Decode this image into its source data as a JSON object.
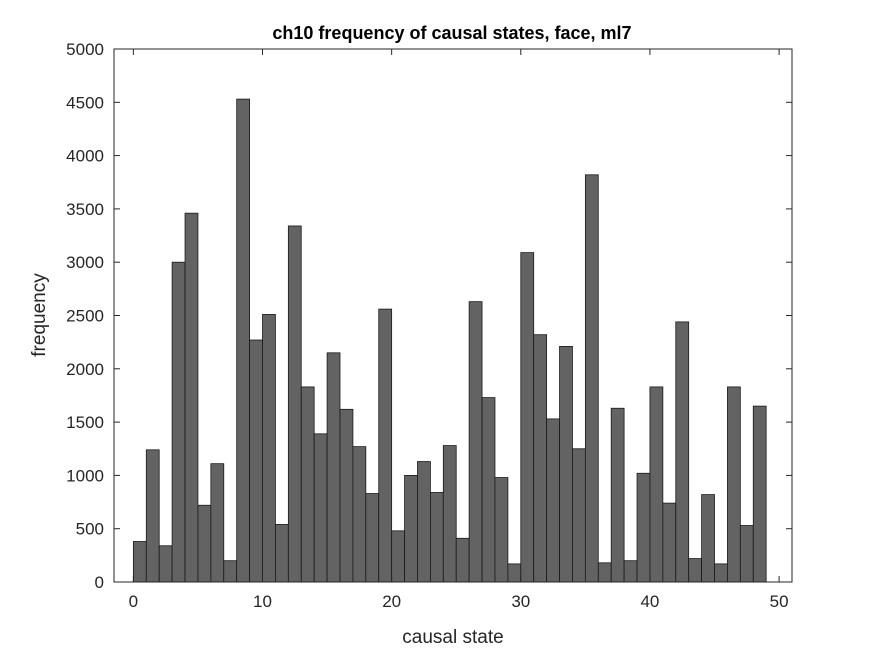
{
  "chart_data": {
    "type": "bar",
    "title": "ch10 frequency of causal states, face, ml7",
    "xlabel": "causal state",
    "ylabel": "frequency",
    "x": [
      0,
      1,
      2,
      3,
      4,
      5,
      6,
      7,
      8,
      9,
      10,
      11,
      12,
      13,
      14,
      15,
      16,
      17,
      18,
      19,
      20,
      21,
      22,
      23,
      24,
      25,
      26,
      27,
      28,
      29,
      30,
      31,
      32,
      33,
      34,
      35,
      36,
      37,
      38,
      39,
      40,
      41,
      42,
      43,
      44,
      45,
      46,
      47,
      48
    ],
    "values": [
      380,
      1240,
      340,
      3000,
      3460,
      720,
      1110,
      200,
      4530,
      2270,
      2510,
      540,
      3340,
      1830,
      1390,
      2150,
      1620,
      1270,
      830,
      2560,
      480,
      1000,
      1130,
      840,
      1280,
      410,
      2630,
      1730,
      980,
      170,
      3090,
      2320,
      1530,
      2210,
      1250,
      3820,
      180,
      1630,
      200,
      1020,
      1830,
      740,
      2440,
      220,
      820,
      170,
      1830,
      530,
      1650
    ],
    "xlim": [
      -1.5,
      51
    ],
    "ylim": [
      0,
      5000
    ],
    "xticks": [
      "0",
      "10",
      "20",
      "30",
      "40",
      "50"
    ],
    "yticks": [
      "0",
      "500",
      "1000",
      "1500",
      "2000",
      "2500",
      "3000",
      "3500",
      "4000",
      "4500",
      "5000"
    ],
    "bar_color": "#636363",
    "edge_color": "#1a1a1a",
    "grid": false,
    "legend": "none"
  }
}
